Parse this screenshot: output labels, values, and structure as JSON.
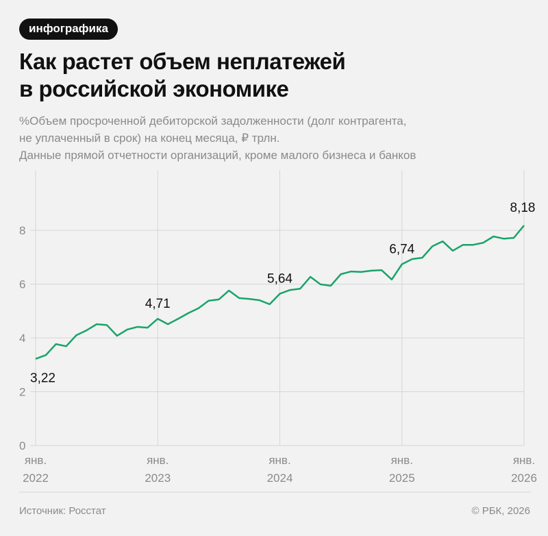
{
  "badge": "инфографика",
  "title_line1": "Как растет объем неплатежей",
  "title_line2": "в российской экономике",
  "subtitle": [
    "%Объем просроченной дебиторской задолженности (долг контрагента,",
    "не уплаченный в срок) на конец месяца, ₽ трлн.",
    "Данные прямой отчетности организаций, кроме малого бизнеса и банков"
  ],
  "source": "Источник: Росстат",
  "copyright": "© РБК, 2026",
  "colors": {
    "line": "#1aa36a",
    "grid": "#d6d6d6"
  },
  "chart_data": {
    "type": "line",
    "x_start": "2022-01",
    "x_end": "2026-01",
    "frequency": "monthly",
    "ylim": [
      0,
      8.5
    ],
    "yticks": [
      0,
      2,
      4,
      6,
      8
    ],
    "xticks": [
      {
        "month": "янв.",
        "year": "2022"
      },
      {
        "month": "янв.",
        "year": "2023"
      },
      {
        "month": "янв.",
        "year": "2024"
      },
      {
        "month": "янв.",
        "year": "2025"
      },
      {
        "month": "янв.",
        "year": "2026"
      }
    ],
    "grid": true,
    "values": [
      3.22,
      3.36,
      3.77,
      3.69,
      4.1,
      4.28,
      4.51,
      4.48,
      4.08,
      4.31,
      4.41,
      4.38,
      4.71,
      4.51,
      4.71,
      4.92,
      5.1,
      5.38,
      5.43,
      5.76,
      5.48,
      5.45,
      5.4,
      5.25,
      5.64,
      5.78,
      5.83,
      6.27,
      5.99,
      5.94,
      6.37,
      6.47,
      6.45,
      6.5,
      6.52,
      6.17,
      6.74,
      6.93,
      6.98,
      7.41,
      7.59,
      7.24,
      7.46,
      7.46,
      7.54,
      7.77,
      7.69,
      7.72,
      8.18
    ],
    "annotations": [
      {
        "index": 0,
        "text": "3,22"
      },
      {
        "index": 12,
        "text": "4,71"
      },
      {
        "index": 24,
        "text": "5,64"
      },
      {
        "index": 36,
        "text": "6,74"
      },
      {
        "index": 48,
        "text": "8,18"
      }
    ]
  }
}
